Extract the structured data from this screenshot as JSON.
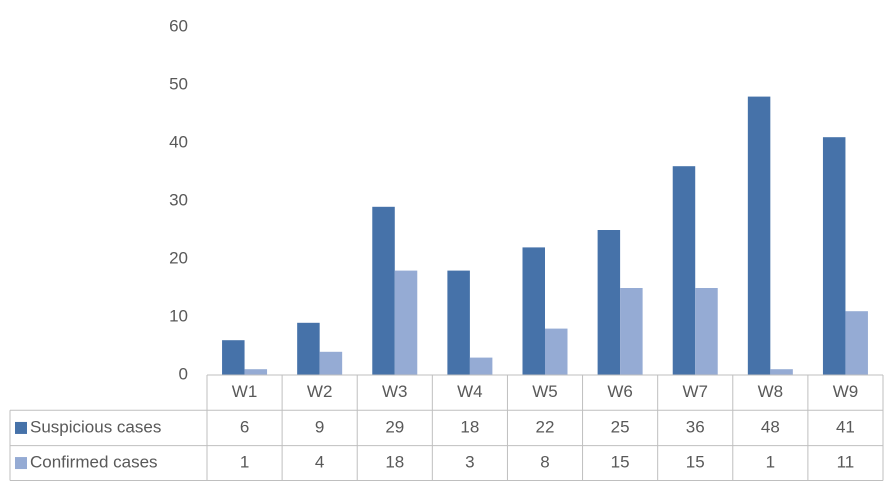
{
  "chart_data": {
    "type": "bar",
    "categories": [
      "W1",
      "W2",
      "W3",
      "W4",
      "W5",
      "W6",
      "W7",
      "W8",
      "W9"
    ],
    "series": [
      {
        "name": "Suspicious cases",
        "color": "#4672a9",
        "values": [
          6,
          9,
          29,
          18,
          22,
          25,
          36,
          48,
          41
        ]
      },
      {
        "name": "Confirmed cases",
        "color": "#95abd4",
        "values": [
          1,
          4,
          18,
          3,
          8,
          15,
          15,
          1,
          11
        ]
      }
    ],
    "ylim": [
      0,
      60
    ],
    "yticks": [
      0,
      10,
      20,
      30,
      40,
      50,
      60
    ],
    "grid": false,
    "data_table": true
  }
}
